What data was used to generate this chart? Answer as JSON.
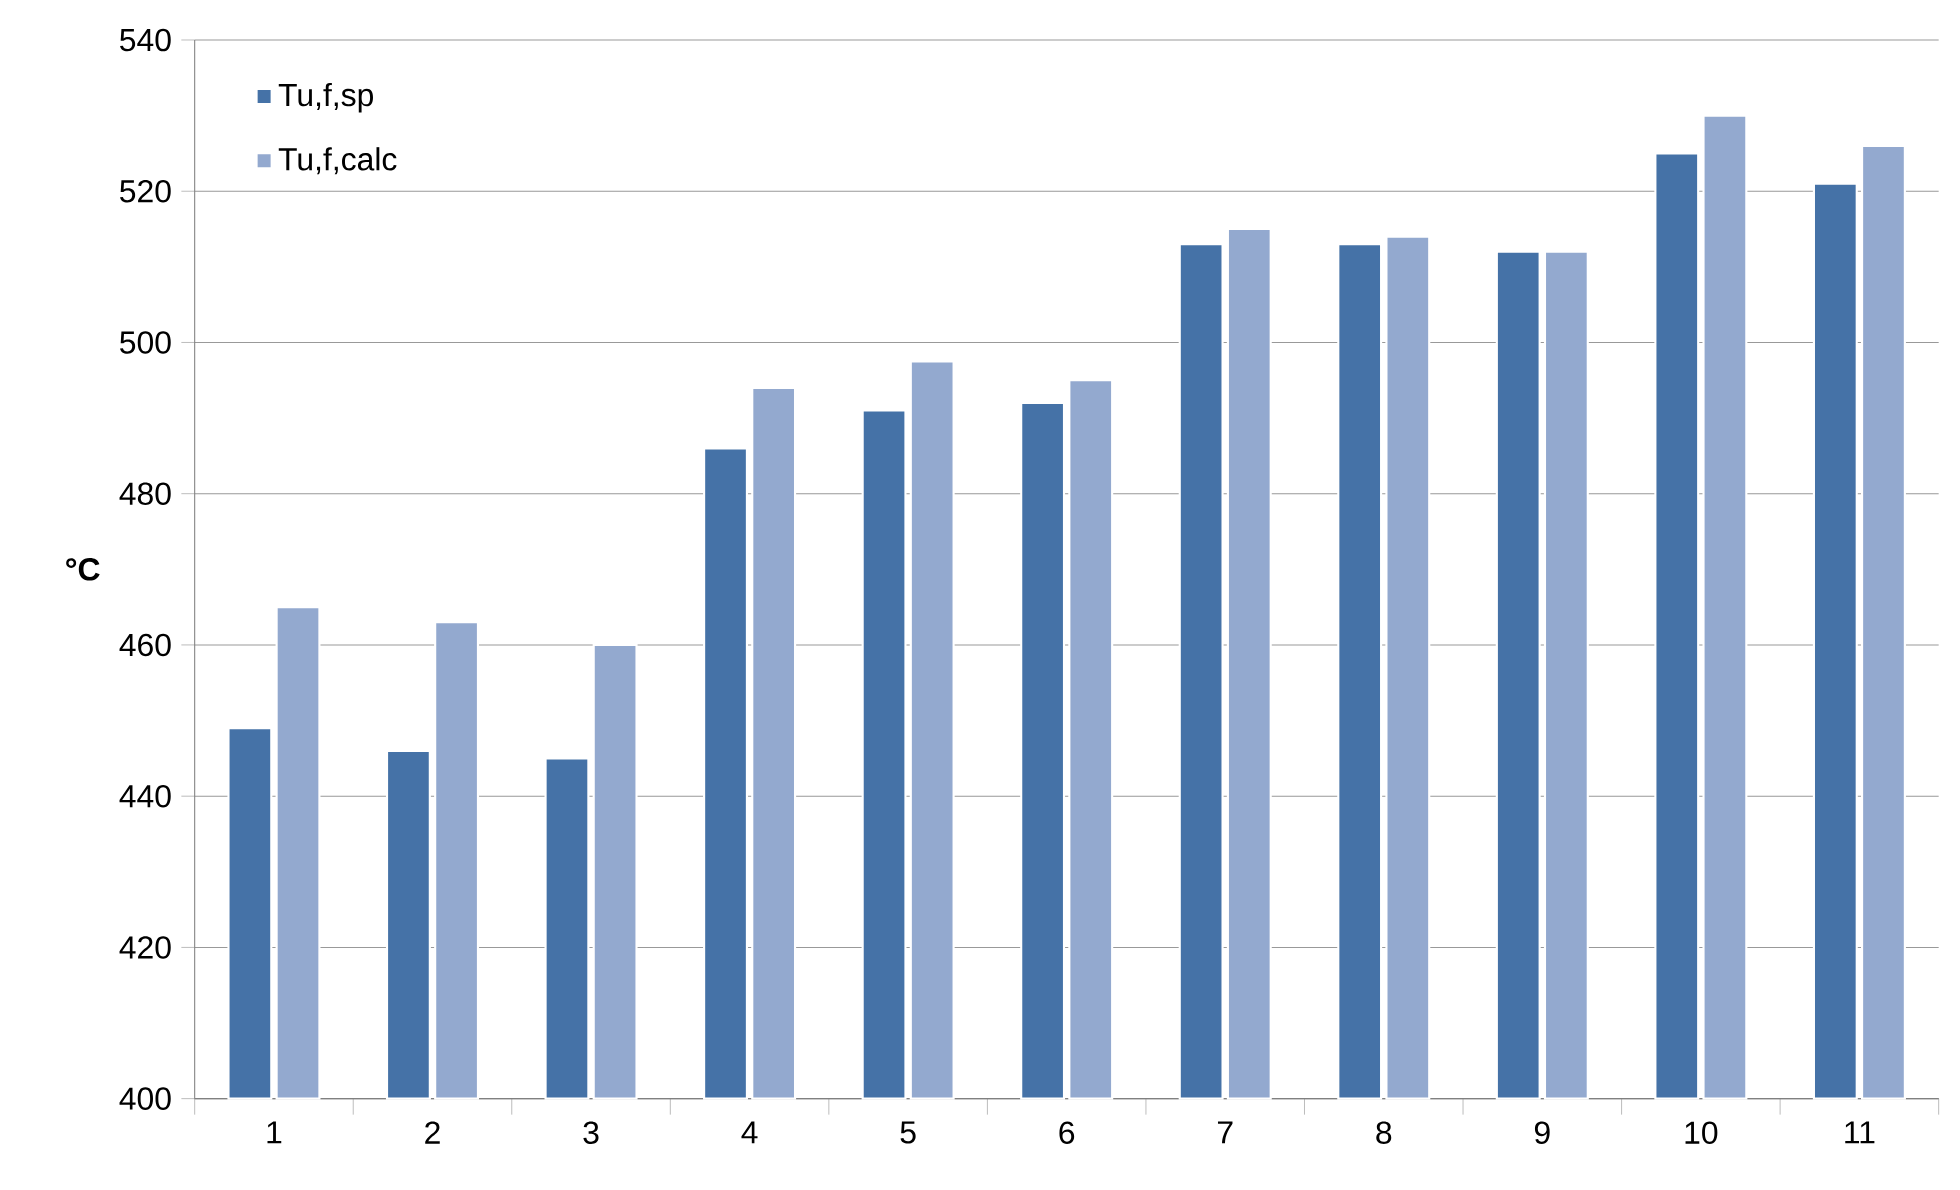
{
  "chart_data": {
    "type": "bar",
    "ylabel": "°C",
    "categories": [
      "1",
      "2",
      "3",
      "4",
      "5",
      "6",
      "7",
      "8",
      "9",
      "10",
      "11"
    ],
    "series": [
      {
        "name": "Tu,f,sp",
        "color": "#4572a7",
        "values": [
          449,
          446,
          445,
          486,
          491,
          492,
          513,
          513,
          512,
          525,
          521
        ]
      },
      {
        "name": "Tu,f,calc",
        "color": "#93a9cf",
        "values": [
          465,
          463,
          460,
          494,
          497.5,
          495,
          515,
          514,
          512,
          530,
          526
        ]
      }
    ],
    "ylim": [
      400,
      540
    ],
    "yticks": [
      400,
      420,
      440,
      460,
      480,
      500,
      520,
      540
    ],
    "grid": "y",
    "legend": "top left"
  }
}
